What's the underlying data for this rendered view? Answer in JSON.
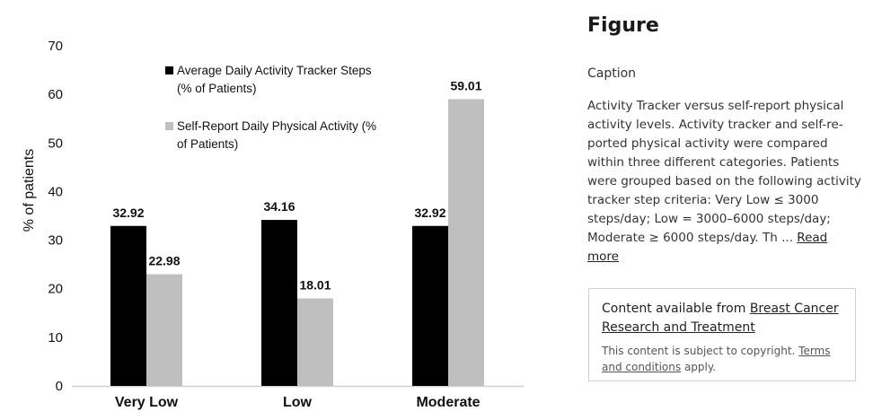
{
  "chart_data": {
    "type": "bar",
    "categories": [
      "Very Low",
      "Low",
      "Moderate"
    ],
    "series": [
      {
        "name": "Average Daily Activity Tracker Steps (% of Patients)",
        "legend_lines": [
          "Average Daily Activity Tracker Steps",
          "(% of Patients)"
        ],
        "values": [
          32.92,
          34.16,
          32.92
        ],
        "value_labels": [
          "32.92",
          "34.16",
          "32.92"
        ],
        "color": "#000000"
      },
      {
        "name": "Self-Report Daily Physical Activity (% of Patients)",
        "legend_lines": [
          "Self-Report Daily Physical Activity (%",
          "of Patients)"
        ],
        "values": [
          22.98,
          18.01,
          59.01
        ],
        "value_labels": [
          "22.98",
          "18.01",
          "59.01"
        ],
        "color": "#bfbfbf"
      }
    ],
    "ylabel": "% of patients",
    "xlabel": "",
    "ylim": [
      0,
      70
    ],
    "yticks": [
      "0",
      "10",
      "20",
      "30",
      "40",
      "50",
      "60",
      "70"
    ],
    "legend_position": "top-center",
    "grid": false
  },
  "sidebar": {
    "title": "Figure",
    "caption_heading": "Caption",
    "caption_text": "Activity Tracker versus self-report physical activity levels. Activity tracker and self-re-ported physical activity were compared within three different categories. Patients were grouped based on the following activity tracker step criteria: Very Low ≤ 3000 steps/day; Low = 3000–6000 steps/day; Moderate ≥ 6000 steps/day. Th",
    "ellipsis": " ... ",
    "read_more": "Read more",
    "source_prefix": "Content available from ",
    "source_link": "Breast Cancer Research and Treatment",
    "copyright_prefix": "This content is subject to copyright. ",
    "terms_link": "Terms and conditions",
    "copyright_suffix": " apply."
  }
}
